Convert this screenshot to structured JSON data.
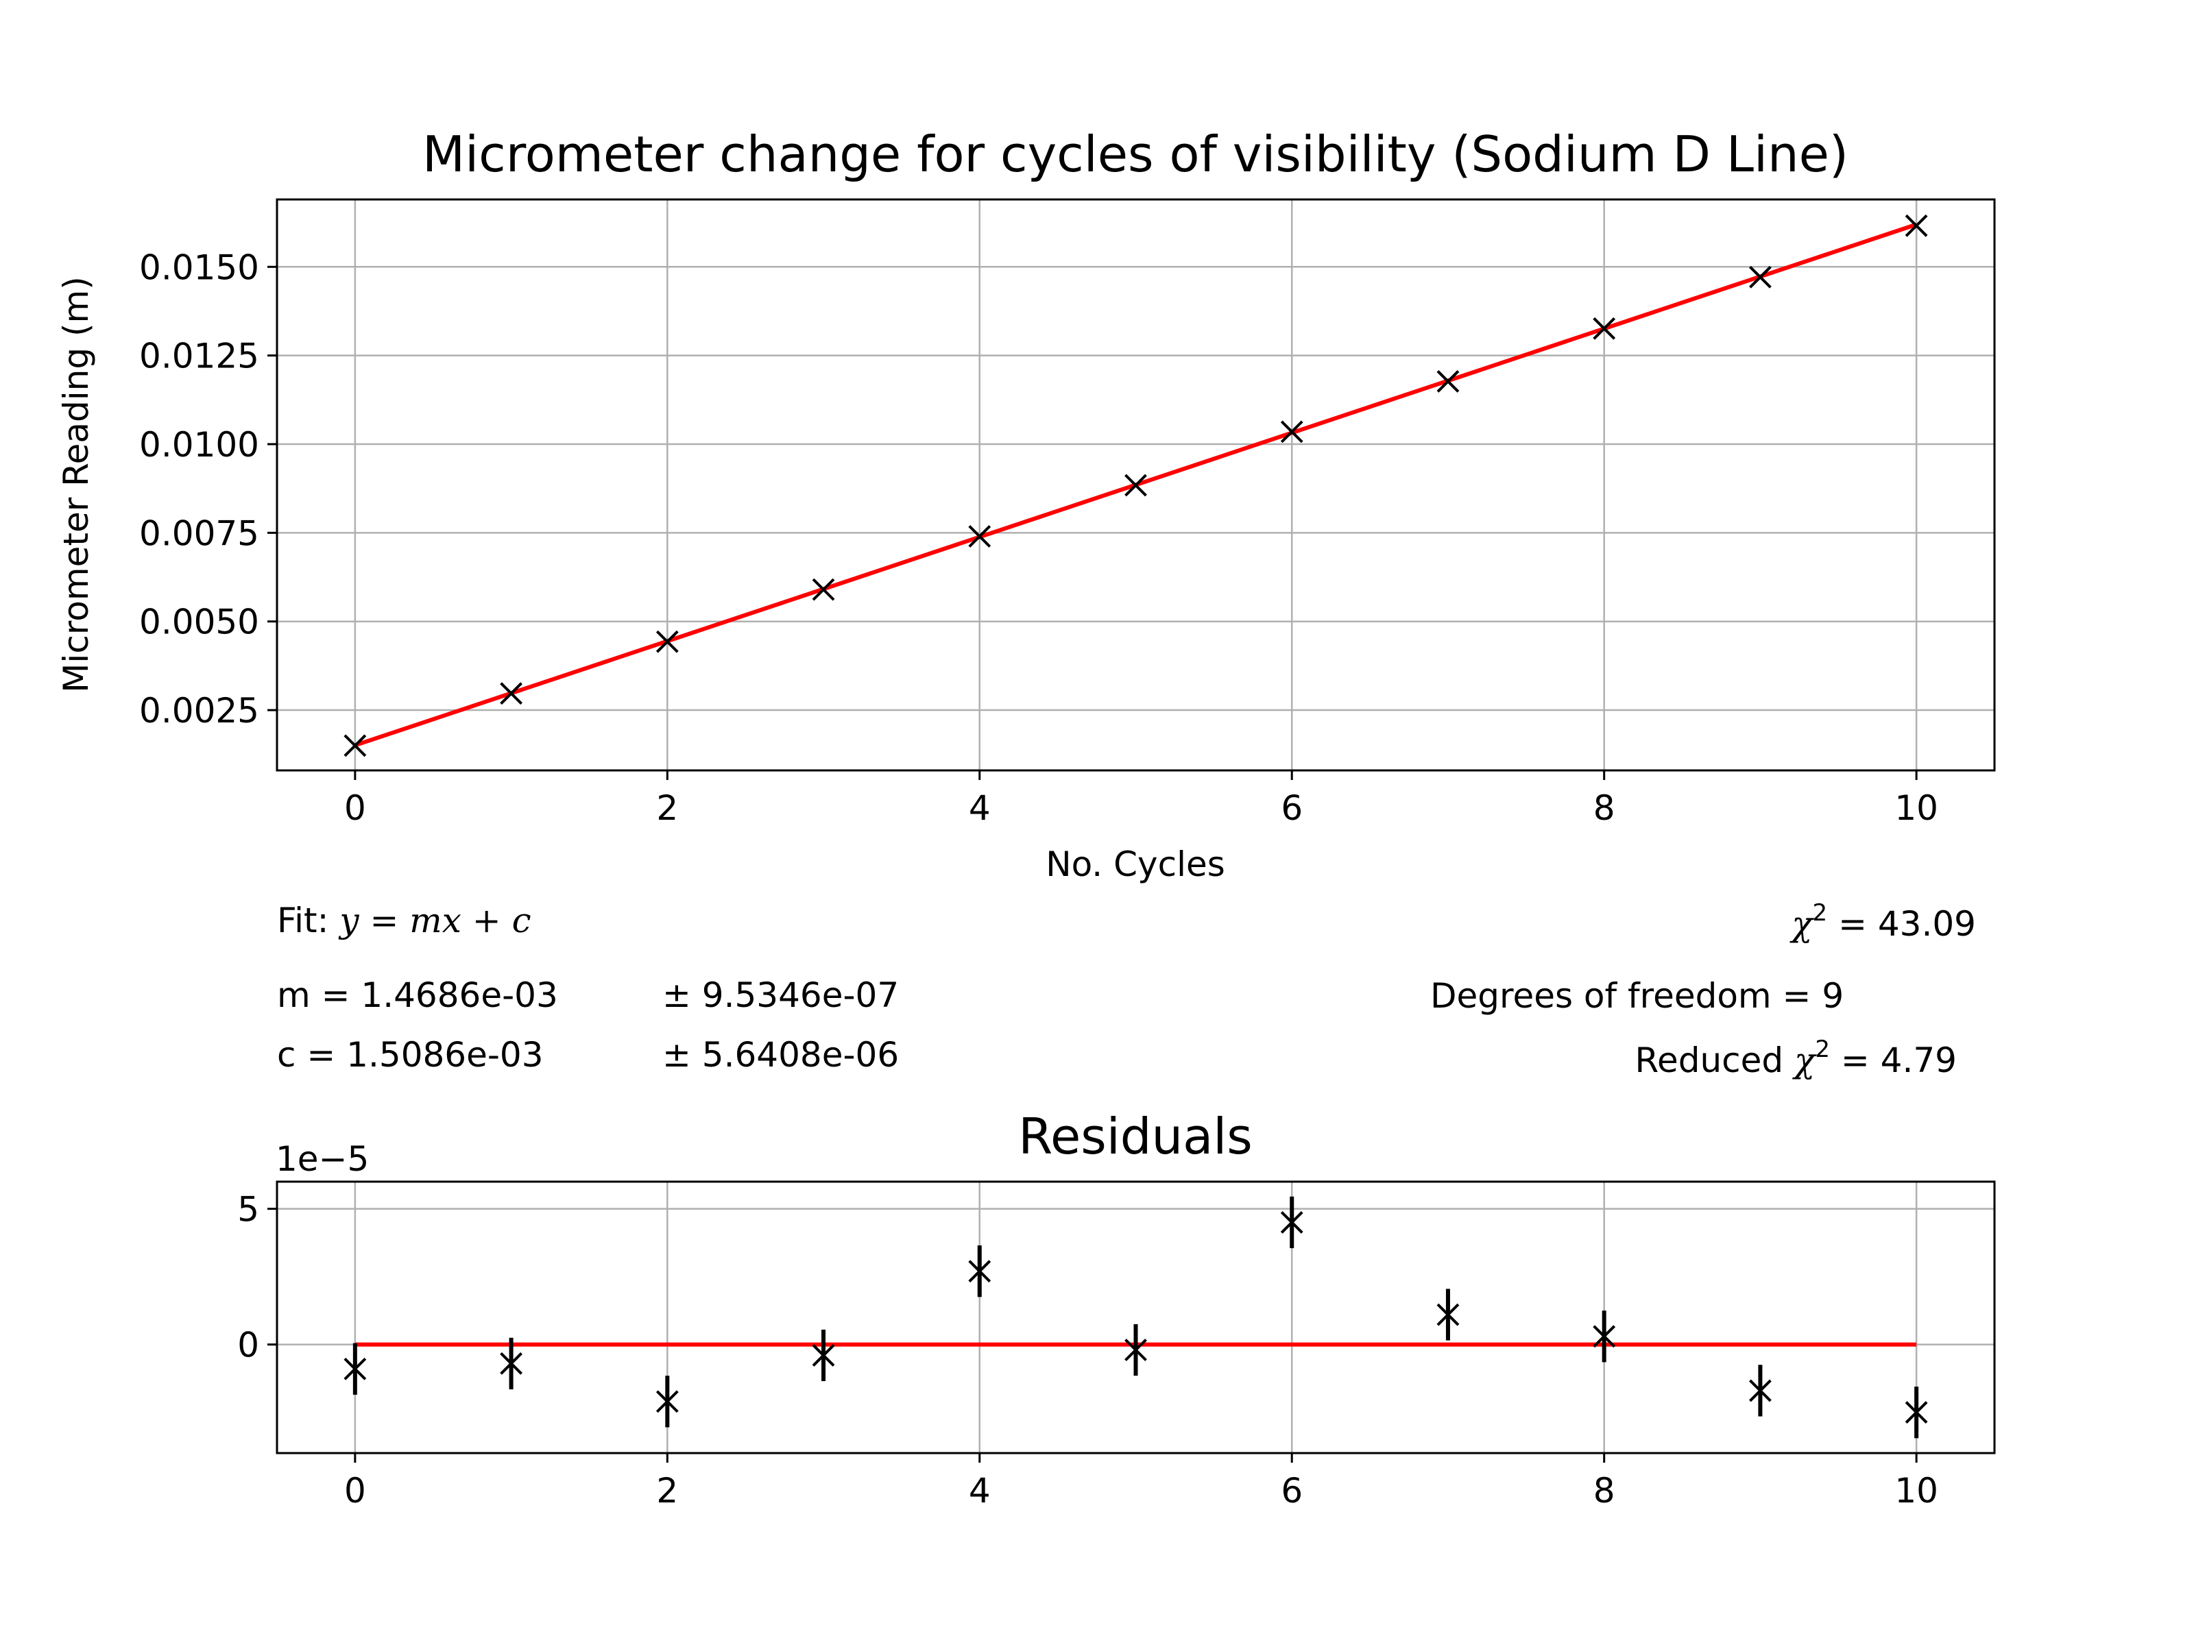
{
  "chart_data": [
    {
      "type": "scatter",
      "title": "Micrometer change for cycles of visibility (Sodium D Line)",
      "xlabel": "No. Cycles",
      "ylabel": "Micrometer Reading (m)",
      "xlim": [
        -0.5,
        10.5
      ],
      "ylim": [
        0.0008,
        0.0169
      ],
      "grid": true,
      "xticks": [
        0,
        2,
        4,
        6,
        8,
        10
      ],
      "xtick_labels": [
        "0",
        "2",
        "4",
        "6",
        "8",
        "10"
      ],
      "yticks": [
        0.0025,
        0.005,
        0.0075,
        0.01,
        0.0125,
        0.015
      ],
      "ytick_labels": [
        "0.0025",
        "0.0050",
        "0.0075",
        "0.0100",
        "0.0125",
        "0.0150"
      ],
      "series": [
        {
          "marker": "x",
          "color": "#000000",
          "x": [
            0,
            1,
            2,
            3,
            4,
            5,
            6,
            7,
            8,
            9,
            10
          ],
          "y": [
            0.0015,
            0.00297,
            0.00443,
            0.0059,
            0.0074,
            0.00884,
            0.01035,
            0.01177,
            0.01326,
            0.01471,
            0.01616
          ]
        },
        {
          "type": "line",
          "color": "#ff0000",
          "x": [
            0,
            10
          ],
          "y": [
            0.0015086,
            0.0161946
          ]
        }
      ]
    },
    {
      "type": "scatter",
      "title": "Residuals",
      "offset_text": "1e−5",
      "xlim": [
        -0.5,
        10.5
      ],
      "ylim": [
        -4.0,
        6.0
      ],
      "grid": true,
      "xticks": [
        0,
        2,
        4,
        6,
        8,
        10
      ],
      "xtick_labels": [
        "0",
        "2",
        "4",
        "6",
        "8",
        "10"
      ],
      "yticks": [
        0,
        5
      ],
      "ytick_labels": [
        "0",
        "5"
      ],
      "series": [
        {
          "marker": "x",
          "color": "#000000",
          "x": [
            0,
            1,
            2,
            3,
            4,
            5,
            6,
            7,
            8,
            9,
            10
          ],
          "y": [
            -0.9,
            -0.7,
            -2.1,
            -0.4,
            2.7,
            -0.2,
            4.5,
            1.1,
            0.3,
            -1.7,
            -2.5
          ],
          "yerr": [
            0.95,
            0.95,
            0.95,
            0.95,
            0.95,
            0.95,
            0.95,
            0.95,
            0.95,
            0.95,
            0.95
          ]
        },
        {
          "type": "line",
          "color": "#ff0000",
          "x": [
            0,
            10
          ],
          "y": [
            0,
            0
          ]
        }
      ]
    }
  ],
  "fit_info": {
    "fit_prefix": "Fit: ",
    "fit_y": "y",
    "fit_rest": " = mx + c",
    "m_label": "m = 1.4686e-03",
    "m_err": "± 9.5346e-07",
    "c_label": "c = 1.5086e-03",
    "c_err": "± 5.6408e-06",
    "chi_symbol": "χ",
    "chi_sup": "2",
    "chi_value": " = 43.09",
    "dof": "Degrees of freedom = 9",
    "reduced_prefix": "Reduced ",
    "reduced_value": " = 4.79"
  }
}
